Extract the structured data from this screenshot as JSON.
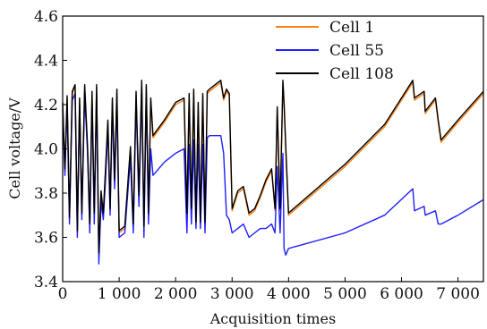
{
  "chart_data": {
    "type": "line",
    "xlabel": "Acquisition times",
    "ylabel": "Cell voltage/V",
    "xlim": [
      0,
      7450
    ],
    "ylim": [
      3.4,
      4.6
    ],
    "x_ticks": [
      0,
      1000,
      2000,
      3000,
      4000,
      5000,
      6000,
      7000
    ],
    "x_tick_labels": [
      "0",
      "1 000",
      "2 000",
      "3 000",
      "4 000",
      "5 000",
      "6 000",
      "7 000"
    ],
    "y_ticks": [
      3.4,
      3.6,
      3.8,
      4.0,
      4.2,
      4.4,
      4.6
    ],
    "y_tick_labels": [
      "3.4",
      "3.6",
      "3.8",
      "4.0",
      "4.2",
      "4.4",
      "4.6"
    ],
    "grid": false,
    "legend_position": "top-right",
    "series": [
      {
        "name": "Cell 1",
        "color": "#ff7f0e",
        "x": [
          0,
          40,
          80,
          120,
          170,
          220,
          260,
          300,
          340,
          390,
          440,
          480,
          520,
          560,
          600,
          640,
          680,
          720,
          760,
          800,
          840,
          880,
          920,
          960,
          1000,
          1100,
          1200,
          1250,
          1300,
          1350,
          1400,
          1440,
          1480,
          1520,
          1560,
          1600,
          1800,
          2000,
          2150,
          2200,
          2240,
          2280,
          2320,
          2360,
          2400,
          2440,
          2480,
          2520,
          2560,
          2600,
          2800,
          2850,
          2900,
          2950,
          3000,
          3100,
          3200,
          3300,
          3400,
          3500,
          3600,
          3700,
          3760,
          3800,
          3850,
          3900,
          3920,
          3950,
          4000,
          5000,
          5700,
          6200,
          6230,
          6400,
          6420,
          6600,
          6650,
          6700,
          7000,
          7450
        ],
        "y": [
          4.2,
          3.9,
          4.23,
          3.68,
          4.25,
          4.28,
          3.62,
          4.22,
          3.7,
          4.28,
          4.0,
          3.65,
          4.25,
          3.7,
          4.28,
          3.52,
          3.8,
          3.7,
          3.9,
          4.12,
          3.72,
          4.22,
          3.85,
          4.26,
          3.62,
          3.64,
          4.0,
          3.65,
          4.25,
          3.78,
          4.3,
          3.64,
          4.28,
          3.7,
          4.22,
          4.05,
          4.12,
          4.2,
          4.22,
          3.7,
          4.24,
          3.72,
          4.26,
          3.66,
          4.2,
          3.66,
          4.24,
          3.66,
          4.25,
          4.26,
          4.3,
          4.22,
          4.26,
          4.24,
          3.72,
          3.8,
          3.82,
          3.7,
          3.72,
          3.78,
          3.85,
          3.9,
          3.72,
          4.18,
          3.72,
          4.3,
          4.2,
          4.0,
          3.7,
          3.92,
          4.1,
          4.3,
          4.22,
          4.25,
          4.16,
          4.22,
          4.12,
          4.03,
          4.12,
          4.25
        ]
      },
      {
        "name": "Cell 55",
        "color": "#1f1fff",
        "x": [
          0,
          40,
          80,
          120,
          170,
          220,
          260,
          300,
          340,
          390,
          440,
          480,
          520,
          560,
          600,
          640,
          680,
          720,
          760,
          800,
          840,
          880,
          920,
          960,
          1000,
          1100,
          1200,
          1250,
          1300,
          1350,
          1400,
          1440,
          1480,
          1520,
          1560,
          1600,
          1800,
          2000,
          2150,
          2200,
          2240,
          2280,
          2320,
          2360,
          2400,
          2440,
          2480,
          2520,
          2560,
          2600,
          2800,
          2850,
          2900,
          2950,
          3000,
          3100,
          3200,
          3300,
          3400,
          3500,
          3600,
          3700,
          3760,
          3800,
          3850,
          3900,
          3920,
          3950,
          4000,
          5000,
          5700,
          6200,
          6230,
          6400,
          6420,
          6600,
          6650,
          6700,
          7000,
          7450
        ],
        "y": [
          4.18,
          3.88,
          4.2,
          3.66,
          4.22,
          4.25,
          3.6,
          4.2,
          3.68,
          4.25,
          3.98,
          3.62,
          4.22,
          3.66,
          4.25,
          3.48,
          3.76,
          3.68,
          3.86,
          4.1,
          3.7,
          4.2,
          3.82,
          4.22,
          3.6,
          3.62,
          3.96,
          3.62,
          4.22,
          3.74,
          4.28,
          3.6,
          4.25,
          3.66,
          4.0,
          3.88,
          3.94,
          3.98,
          4.0,
          3.62,
          4.02,
          3.66,
          4.04,
          3.64,
          4.02,
          3.64,
          4.02,
          3.62,
          4.05,
          4.06,
          4.06,
          3.98,
          3.7,
          3.68,
          3.62,
          3.64,
          3.66,
          3.6,
          3.62,
          3.64,
          3.64,
          3.66,
          3.62,
          3.92,
          3.62,
          3.98,
          3.55,
          3.52,
          3.55,
          3.62,
          3.7,
          3.82,
          3.72,
          3.74,
          3.7,
          3.72,
          3.66,
          3.66,
          3.7,
          3.77
        ]
      },
      {
        "name": "Cell 108",
        "color": "#000000",
        "x": [
          0,
          40,
          80,
          120,
          170,
          220,
          260,
          300,
          340,
          390,
          440,
          480,
          520,
          560,
          600,
          640,
          680,
          720,
          760,
          800,
          840,
          880,
          920,
          960,
          1000,
          1100,
          1200,
          1250,
          1300,
          1350,
          1400,
          1440,
          1480,
          1520,
          1560,
          1600,
          1800,
          2000,
          2150,
          2200,
          2240,
          2280,
          2320,
          2360,
          2400,
          2440,
          2480,
          2520,
          2560,
          2600,
          2800,
          2850,
          2900,
          2950,
          3000,
          3100,
          3200,
          3300,
          3400,
          3500,
          3600,
          3700,
          3760,
          3800,
          3850,
          3900,
          3920,
          3950,
          4000,
          5000,
          5700,
          6200,
          6230,
          6400,
          6420,
          6600,
          6650,
          6700,
          7000,
          7450
        ],
        "y": [
          4.21,
          3.91,
          4.24,
          3.69,
          4.26,
          4.29,
          3.63,
          4.23,
          3.71,
          4.29,
          4.01,
          3.66,
          4.26,
          3.71,
          4.29,
          3.53,
          3.81,
          3.71,
          3.91,
          4.13,
          3.73,
          4.23,
          3.86,
          4.27,
          3.63,
          3.65,
          4.01,
          3.66,
          4.26,
          3.79,
          4.31,
          3.65,
          4.29,
          3.71,
          4.23,
          4.06,
          4.13,
          4.21,
          4.23,
          3.71,
          4.25,
          3.73,
          4.27,
          3.67,
          4.21,
          3.67,
          4.25,
          3.67,
          4.26,
          4.27,
          4.31,
          4.23,
          4.27,
          4.25,
          3.73,
          3.81,
          3.83,
          3.71,
          3.73,
          3.79,
          3.86,
          3.91,
          3.73,
          4.19,
          3.73,
          4.31,
          4.21,
          4.01,
          3.71,
          3.93,
          4.11,
          4.31,
          4.23,
          4.26,
          4.17,
          4.23,
          4.13,
          4.04,
          4.13,
          4.26
        ]
      }
    ]
  }
}
